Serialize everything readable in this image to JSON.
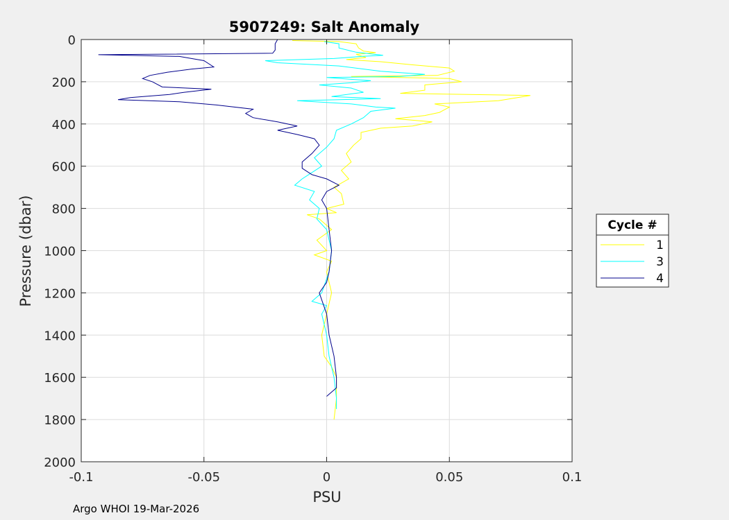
{
  "chart_data": {
    "type": "line",
    "title": "5907249: Salt Anomaly",
    "xlabel": "PSU",
    "ylabel": "Pressure (dbar)",
    "xlim": [
      -0.1,
      0.1
    ],
    "ylim": [
      0,
      2000
    ],
    "y_reversed": true,
    "grid": true,
    "x_ticks": [
      -0.1,
      -0.05,
      0,
      0.05,
      0.1
    ],
    "x_tick_labels": [
      "-0.1",
      "-0.05",
      "0",
      "0.05",
      "0.1"
    ],
    "y_ticks": [
      0,
      200,
      400,
      600,
      800,
      1000,
      1200,
      1400,
      1600,
      1800,
      2000
    ],
    "y_tick_labels": [
      "0",
      "200",
      "400",
      "600",
      "800",
      "1000",
      "1200",
      "1400",
      "1600",
      "1800",
      "2000"
    ],
    "legend": {
      "title": "Cycle #",
      "position": "outside-right"
    },
    "series": [
      {
        "name": "1",
        "color": "#ffff00",
        "points": [
          [
            -0.014,
            5
          ],
          [
            0.005,
            10
          ],
          [
            0.012,
            20
          ],
          [
            0.013,
            40
          ],
          [
            0.015,
            55
          ],
          [
            0.02,
            62
          ],
          [
            0.012,
            70
          ],
          [
            0.016,
            85
          ],
          [
            0.008,
            95
          ],
          [
            0.022,
            105
          ],
          [
            0.035,
            120
          ],
          [
            0.05,
            135
          ],
          [
            0.052,
            150
          ],
          [
            0.045,
            170
          ],
          [
            0.01,
            175
          ],
          [
            0.05,
            185
          ],
          [
            0.055,
            200
          ],
          [
            0.04,
            215
          ],
          [
            0.04,
            240
          ],
          [
            0.03,
            255
          ],
          [
            0.083,
            265
          ],
          [
            0.07,
            290
          ],
          [
            0.044,
            305
          ],
          [
            0.05,
            320
          ],
          [
            0.046,
            345
          ],
          [
            0.04,
            360
          ],
          [
            0.028,
            375
          ],
          [
            0.043,
            390
          ],
          [
            0.035,
            410
          ],
          [
            0.022,
            420
          ],
          [
            0.014,
            440
          ],
          [
            0.014,
            470
          ],
          [
            0.011,
            500
          ],
          [
            0.008,
            540
          ],
          [
            0.01,
            580
          ],
          [
            0.006,
            620
          ],
          [
            0.009,
            660
          ],
          [
            0.003,
            700
          ],
          [
            0.006,
            730
          ],
          [
            0.007,
            780
          ],
          [
            0.0,
            800
          ],
          [
            0.004,
            820
          ],
          [
            -0.008,
            830
          ],
          [
            -0.003,
            850
          ],
          [
            0.002,
            900
          ],
          [
            -0.004,
            950
          ],
          [
            0.0,
            1000
          ],
          [
            -0.005,
            1020
          ],
          [
            0.002,
            1050
          ],
          [
            0.0,
            1100
          ],
          [
            0.002,
            1200
          ],
          [
            0.0,
            1300
          ],
          [
            -0.002,
            1400
          ],
          [
            -0.001,
            1500
          ],
          [
            0.002,
            1550
          ],
          [
            0.004,
            1600
          ],
          [
            0.004,
            1700
          ],
          [
            0.003,
            1800
          ]
        ]
      },
      {
        "name": "3",
        "color": "#00ffff",
        "points": [
          [
            -0.001,
            10
          ],
          [
            0.005,
            20
          ],
          [
            0.005,
            40
          ],
          [
            0.012,
            60
          ],
          [
            0.023,
            75
          ],
          [
            0.014,
            80
          ],
          [
            0.003,
            90
          ],
          [
            -0.025,
            100
          ],
          [
            -0.02,
            110
          ],
          [
            0.005,
            125
          ],
          [
            0.022,
            150
          ],
          [
            0.04,
            165
          ],
          [
            0.03,
            175
          ],
          [
            0.0,
            180
          ],
          [
            0.018,
            195
          ],
          [
            0.01,
            205
          ],
          [
            -0.003,
            215
          ],
          [
            0.01,
            230
          ],
          [
            0.015,
            250
          ],
          [
            0.002,
            270
          ],
          [
            0.022,
            280
          ],
          [
            -0.012,
            290
          ],
          [
            0.01,
            305
          ],
          [
            0.02,
            320
          ],
          [
            0.028,
            325
          ],
          [
            0.018,
            340
          ],
          [
            0.015,
            370
          ],
          [
            0.01,
            400
          ],
          [
            0.004,
            430
          ],
          [
            0.003,
            470
          ],
          [
            0.0,
            510
          ],
          [
            -0.005,
            560
          ],
          [
            -0.002,
            600
          ],
          [
            -0.01,
            660
          ],
          [
            -0.013,
            690
          ],
          [
            -0.005,
            720
          ],
          [
            -0.007,
            760
          ],
          [
            -0.003,
            800
          ],
          [
            -0.004,
            850
          ],
          [
            0.0,
            900
          ],
          [
            0.002,
            1000
          ],
          [
            0.001,
            1100
          ],
          [
            -0.002,
            1200
          ],
          [
            -0.006,
            1240
          ],
          [
            0.0,
            1260
          ],
          [
            -0.002,
            1300
          ],
          [
            0.0,
            1400
          ],
          [
            0.001,
            1500
          ],
          [
            0.003,
            1600
          ],
          [
            0.004,
            1700
          ],
          [
            0.004,
            1750
          ]
        ]
      },
      {
        "name": "4",
        "color": "#00008b",
        "points": [
          [
            -0.02,
            0
          ],
          [
            -0.021,
            20
          ],
          [
            -0.021,
            50
          ],
          [
            -0.022,
            65
          ],
          [
            -0.093,
            72
          ],
          [
            -0.06,
            80
          ],
          [
            -0.05,
            100
          ],
          [
            -0.046,
            130
          ],
          [
            -0.055,
            140
          ],
          [
            -0.065,
            155
          ],
          [
            -0.072,
            170
          ],
          [
            -0.075,
            185
          ],
          [
            -0.071,
            200
          ],
          [
            -0.067,
            225
          ],
          [
            -0.047,
            235
          ],
          [
            -0.058,
            250
          ],
          [
            -0.064,
            260
          ],
          [
            -0.08,
            275
          ],
          [
            -0.085,
            285
          ],
          [
            -0.06,
            295
          ],
          [
            -0.045,
            310
          ],
          [
            -0.03,
            330
          ],
          [
            -0.033,
            350
          ],
          [
            -0.03,
            370
          ],
          [
            -0.02,
            390
          ],
          [
            -0.012,
            410
          ],
          [
            -0.02,
            430
          ],
          [
            -0.012,
            450
          ],
          [
            -0.005,
            470
          ],
          [
            -0.003,
            500
          ],
          [
            -0.006,
            540
          ],
          [
            -0.01,
            580
          ],
          [
            -0.01,
            610
          ],
          [
            -0.006,
            640
          ],
          [
            0.0,
            660
          ],
          [
            0.005,
            690
          ],
          [
            0.0,
            720
          ],
          [
            -0.002,
            760
          ],
          [
            0.0,
            800
          ],
          [
            0.001,
            900
          ],
          [
            0.002,
            1000
          ],
          [
            0.001,
            1100
          ],
          [
            0.0,
            1150
          ],
          [
            -0.003,
            1200
          ],
          [
            0.0,
            1300
          ],
          [
            0.001,
            1400
          ],
          [
            0.003,
            1500
          ],
          [
            0.004,
            1600
          ],
          [
            0.004,
            1650
          ],
          [
            0.0,
            1690
          ]
        ]
      }
    ]
  },
  "footer": {
    "text": "Argo WHOI 19-Mar-2026"
  }
}
